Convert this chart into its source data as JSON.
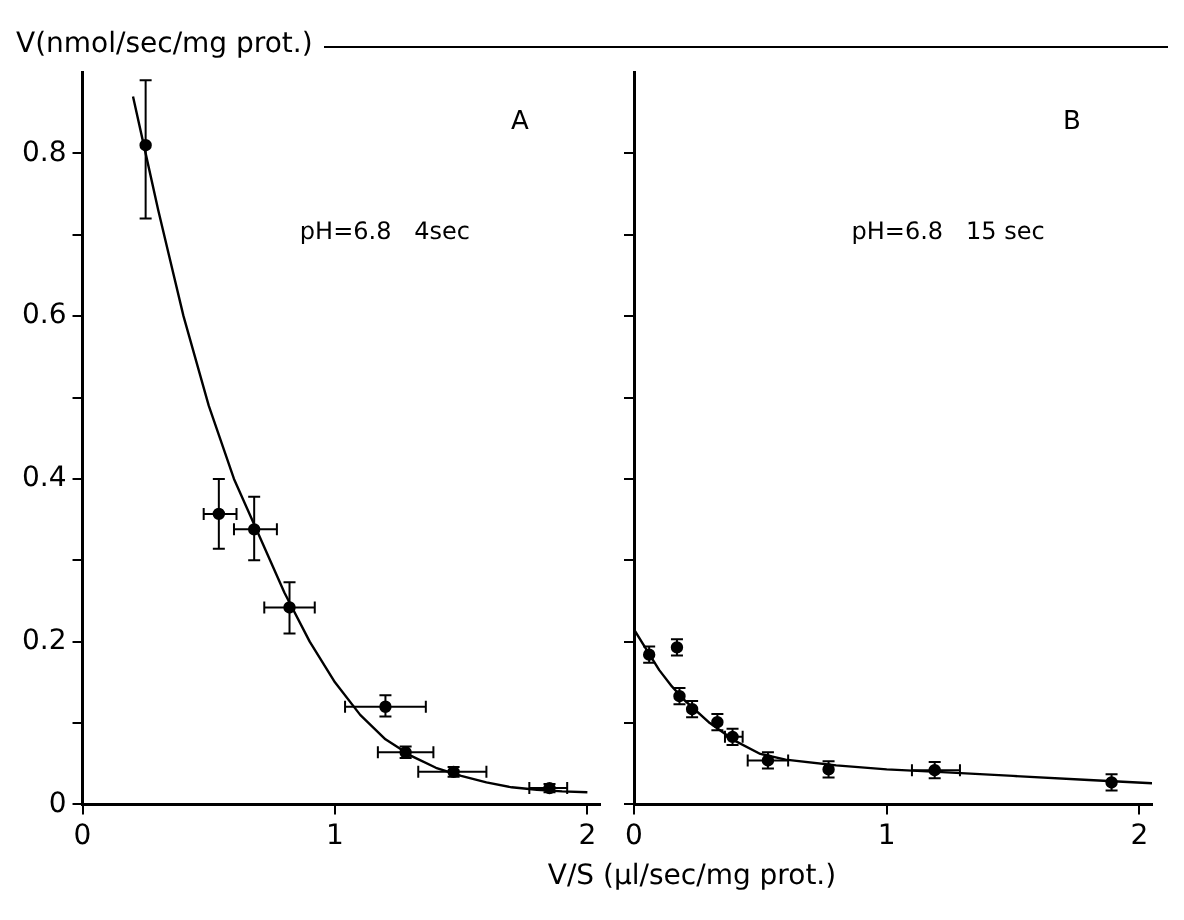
{
  "chart_data": [
    {
      "type": "scatter",
      "ylabel": "V(nmol/sec/mg prot.)",
      "annotations": [
        "A",
        "pH=6.8   4sec"
      ],
      "xlim": [
        0,
        2.05
      ],
      "ylim": [
        0,
        0.9
      ],
      "xticks": [
        0,
        1,
        2
      ],
      "yticks": [
        0,
        {
          "value": 0.1,
          "label": null
        },
        0.2,
        {
          "value": 0.3,
          "label": null
        },
        0.4,
        {
          "value": 0.5,
          "label": null
        },
        0.6,
        {
          "value": 0.7,
          "label": null
        },
        0.8
      ],
      "series": [
        {
          "type": "scatter",
          "marker": "circle",
          "color": "#000000",
          "x": [
            0.25,
            0.54,
            0.68,
            0.82,
            1.2,
            1.28,
            1.47,
            1.85
          ],
          "values": [
            0.81,
            0.357,
            0.338,
            0.242,
            0.12,
            0.064,
            0.04,
            0.02
          ],
          "errors": [
            [
              0.72,
              0.89
            ],
            [
              0.314,
              0.4
            ],
            [
              0.3,
              0.378
            ],
            [
              0.21,
              0.273
            ],
            [
              0.108,
              0.134
            ],
            [
              0.057,
              0.071
            ],
            [
              0.034,
              0.046
            ],
            [
              0.015,
              0.025
            ]
          ],
          "xerrors": [
            null,
            [
              0.48,
              0.61
            ],
            [
              0.6,
              0.77
            ],
            [
              0.72,
              0.92
            ],
            [
              1.04,
              1.36
            ],
            [
              1.17,
              1.39
            ],
            [
              1.33,
              1.6
            ],
            [
              1.77,
              1.92
            ]
          ]
        },
        {
          "type": "line",
          "marker": "none",
          "color": "#000000",
          "x": [
            0.2,
            0.25,
            0.3,
            0.4,
            0.5,
            0.6,
            0.7,
            0.8,
            0.9,
            1.0,
            1.1,
            1.2,
            1.3,
            1.4,
            1.5,
            1.6,
            1.7,
            1.8,
            1.9,
            2.0
          ],
          "values": [
            0.87,
            0.8,
            0.73,
            0.6,
            0.49,
            0.4,
            0.33,
            0.26,
            0.2,
            0.15,
            0.11,
            0.08,
            0.06,
            0.045,
            0.035,
            0.027,
            0.021,
            0.018,
            0.016,
            0.015
          ]
        }
      ]
    },
    {
      "type": "scatter",
      "xlabel": "V/S (µl/sec/mg prot.)",
      "annotations": [
        "B",
        "pH=6.8   15 sec"
      ],
      "tick_labels": "x",
      "xlim": [
        0,
        2.05
      ],
      "ylim": [
        0,
        0.9
      ],
      "xticks": [
        0,
        1,
        2
      ],
      "yticks": [
        0,
        {
          "value": 0.1,
          "label": null
        },
        {
          "value": 0.2,
          "label": null
        },
        {
          "value": 0.3,
          "label": null
        },
        {
          "value": 0.4,
          "label": null
        },
        {
          "value": 0.5,
          "label": null
        },
        {
          "value": 0.6,
          "label": null
        },
        {
          "value": 0.7,
          "label": null
        },
        {
          "value": 0.8,
          "label": null
        }
      ],
      "series": [
        {
          "type": "scatter",
          "marker": "circle",
          "color": "#000000",
          "x": [
            0.06,
            0.17,
            0.18,
            0.23,
            0.33,
            0.39,
            0.53,
            0.77,
            1.19,
            1.89
          ],
          "values": [
            0.184,
            0.193,
            0.133,
            0.117,
            0.101,
            0.083,
            0.054,
            0.043,
            0.042,
            0.027
          ],
          "errors": [
            0.01,
            0.01,
            0.01,
            0.01,
            0.01,
            0.01,
            0.01,
            0.01,
            0.01,
            0.01
          ],
          "xerrors": [
            null,
            null,
            null,
            null,
            null,
            [
              0.36,
              0.43
            ],
            [
              0.45,
              0.61
            ],
            null,
            [
              1.1,
              1.29
            ],
            null
          ]
        },
        {
          "type": "line",
          "marker": "none",
          "color": "#000000",
          "x": [
            0,
            0.05,
            0.1,
            0.15,
            0.2,
            0.3,
            0.4,
            0.5,
            0.6,
            0.8,
            1.0,
            1.2,
            1.5,
            1.8,
            2.05
          ],
          "values": [
            0.215,
            0.19,
            0.165,
            0.145,
            0.128,
            0.1,
            0.078,
            0.062,
            0.055,
            0.048,
            0.043,
            0.04,
            0.035,
            0.03,
            0.026
          ]
        }
      ]
    }
  ]
}
